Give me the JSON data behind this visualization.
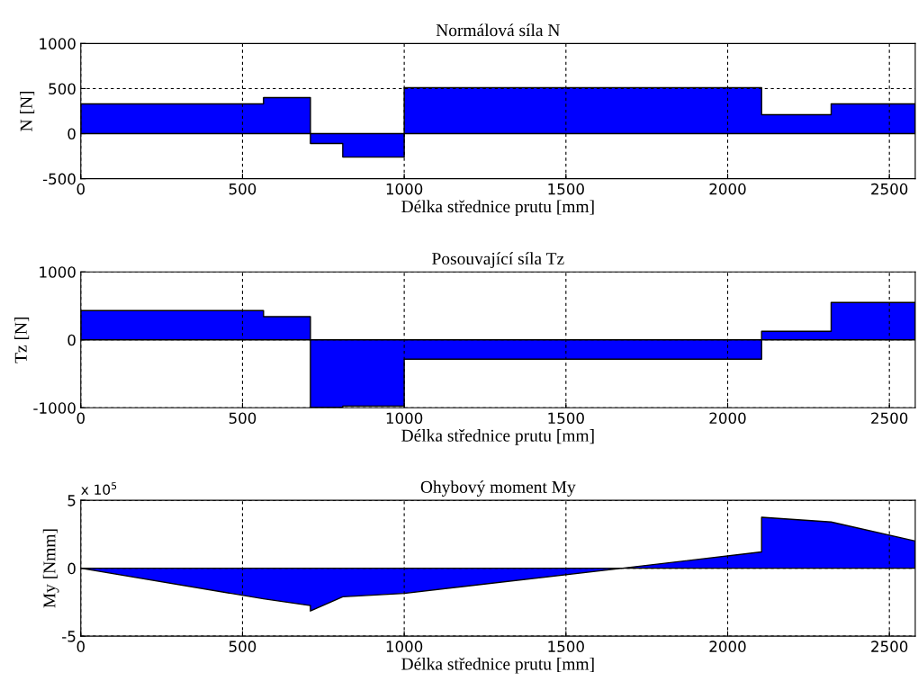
{
  "chart_data": [
    {
      "type": "area",
      "title": "Normálová síla N",
      "xlabel": "Délka střednice prutu [mm]",
      "ylabel": "N [N]",
      "series": [
        {
          "color": "#0000ff",
          "x": [
            0,
            565,
            565,
            710,
            710,
            810,
            810,
            1000,
            1000,
            2105,
            2105,
            2320,
            2320,
            2580
          ],
          "values": [
            330,
            330,
            400,
            400,
            -110,
            -110,
            -260,
            -260,
            510,
            510,
            210,
            210,
            330,
            330
          ]
        }
      ],
      "xlim": [
        0,
        2580
      ],
      "xticks": [
        0,
        500,
        1000,
        1500,
        2000,
        2500
      ],
      "ylim": [
        -500,
        1000
      ],
      "yticks": [
        -500,
        0,
        500,
        1000
      ],
      "grid": true
    },
    {
      "type": "area",
      "title": "Posouvající síla Tz",
      "xlabel": "Délka střednice prutu [mm]",
      "ylabel": "Tz [N]",
      "series": [
        {
          "color": "#0000ff",
          "x": [
            0,
            565,
            565,
            710,
            710,
            810,
            810,
            1000,
            1000,
            2105,
            2105,
            2320,
            2320,
            2580
          ],
          "values": [
            430,
            430,
            340,
            340,
            -995,
            -995,
            -975,
            -975,
            -285,
            -285,
            125,
            125,
            550,
            550
          ]
        }
      ],
      "xlim": [
        0,
        2580
      ],
      "xticks": [
        0,
        500,
        1000,
        1500,
        2000,
        2500
      ],
      "ylim": [
        -1000,
        1000
      ],
      "yticks": [
        -1000,
        0,
        1000
      ],
      "grid": true
    },
    {
      "type": "area",
      "title": "Ohybový moment My",
      "xlabel": "Délka střednice prutu [mm]",
      "ylabel": "My [Nmm]",
      "annotations": [
        "x 10$^{5}$"
      ],
      "series": [
        {
          "color": "#0000ff",
          "x": [
            0,
            565,
            710,
            710,
            810,
            1000,
            1675,
            2105,
            2105,
            2320,
            2580
          ],
          "values": [
            0,
            -2.25,
            -2.75,
            -3.15,
            -2.1,
            -1.85,
            0,
            1.2,
            3.75,
            3.4,
            2.0
          ]
        }
      ],
      "xlim": [
        0,
        2580
      ],
      "xticks": [
        0,
        500,
        1000,
        1500,
        2000,
        2500
      ],
      "ylim": [
        -5,
        5
      ],
      "yticks": [
        -5,
        0,
        5
      ],
      "grid": true
    }
  ]
}
